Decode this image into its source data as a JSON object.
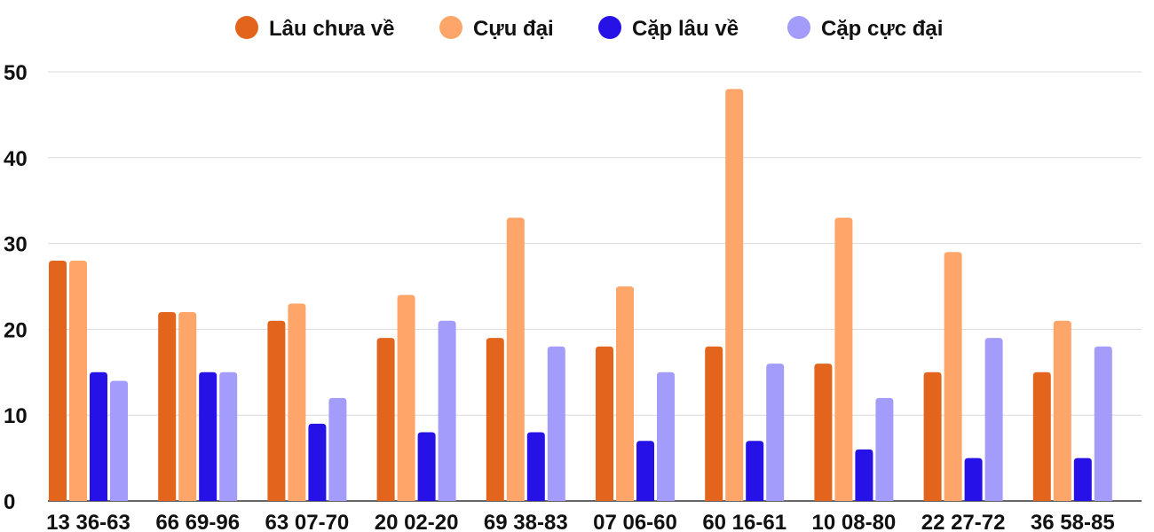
{
  "chart_data": {
    "type": "bar",
    "title": "",
    "xlabel": "",
    "ylabel": "",
    "ylim": [
      0,
      50
    ],
    "yticks": [
      0,
      10,
      20,
      30,
      40,
      50
    ],
    "grid": true,
    "legend_position": "top-center",
    "categories": [
      "13 36-63",
      "66 69-96",
      "63 07-70",
      "20 02-20",
      "69 38-83",
      "07 06-60",
      "60 16-61",
      "10 08-80",
      "22 27-72",
      "36 58-85"
    ],
    "series": [
      {
        "name": "Lâu chưa về",
        "color": "#e3651d",
        "values": [
          28,
          22,
          21,
          19,
          19,
          18,
          18,
          16,
          15,
          15
        ]
      },
      {
        "name": "Cựu đại",
        "color": "#fea569",
        "values": [
          28,
          22,
          23,
          24,
          33,
          25,
          48,
          33,
          29,
          21
        ]
      },
      {
        "name": "Cặp lâu về",
        "color": "#2612e6",
        "values": [
          15,
          15,
          9,
          8,
          8,
          7,
          7,
          6,
          5,
          5
        ]
      },
      {
        "name": "Cặp cực đại",
        "color": "#a39cfb",
        "values": [
          14,
          15,
          12,
          21,
          18,
          15,
          16,
          12,
          19,
          18
        ]
      }
    ]
  }
}
